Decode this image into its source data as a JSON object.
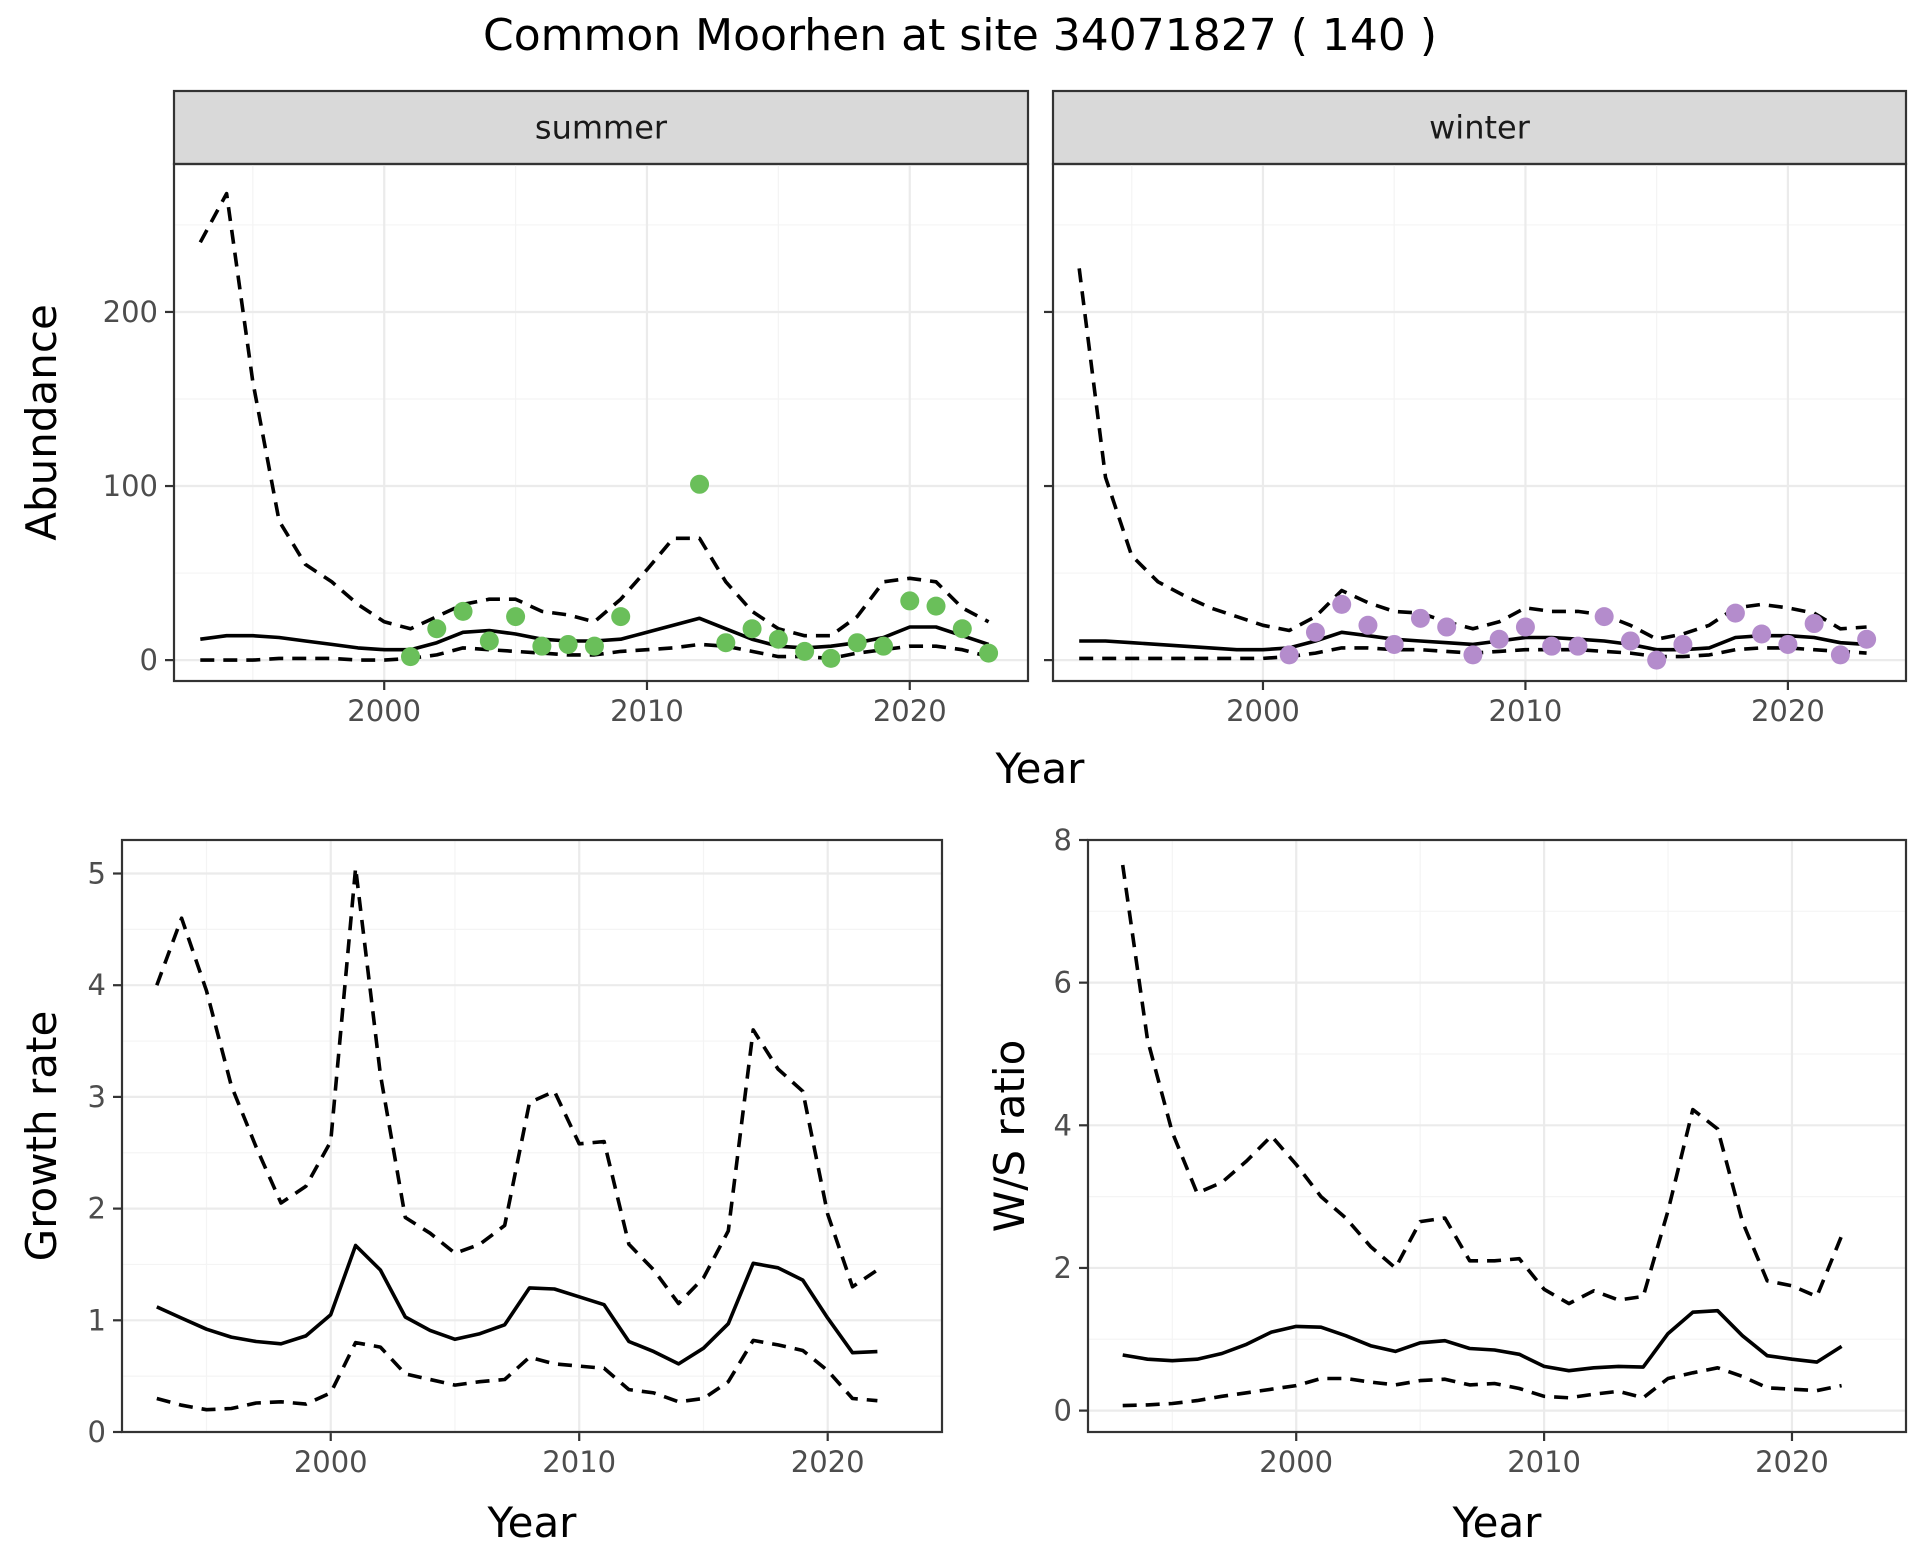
{
  "title": "Common Moorhen at site 34071827 ( 140 )",
  "colors": {
    "summer": "#6abf5a",
    "winter": "#b48ccc"
  },
  "chart_data": [
    {
      "id": "summer",
      "type": "line",
      "facet_label": "summer",
      "xlabel": "",
      "ylabel": "Abundance",
      "xlim": [
        1992,
        2024.5
      ],
      "ylim": [
        -12,
        285
      ],
      "xticks": [
        2000,
        2010,
        2020
      ],
      "yticks": [
        0,
        100,
        200
      ],
      "x": [
        1993,
        1994,
        1995,
        1996,
        1997,
        1998,
        1999,
        2000,
        2001,
        2002,
        2003,
        2004,
        2005,
        2006,
        2007,
        2008,
        2009,
        2010,
        2011,
        2012,
        2013,
        2014,
        2015,
        2016,
        2017,
        2018,
        2019,
        2020,
        2021,
        2022,
        2023
      ],
      "series": [
        {
          "role": "mean",
          "values": [
            12,
            14,
            14,
            13,
            11,
            9,
            7,
            6,
            6,
            10,
            16,
            17,
            15,
            12,
            11,
            11,
            12,
            16,
            20,
            24,
            18,
            12,
            8,
            7,
            8,
            10,
            13,
            19,
            19,
            14,
            9
          ]
        },
        {
          "role": "upper",
          "values": [
            240,
            268,
            160,
            80,
            55,
            45,
            32,
            22,
            18,
            25,
            32,
            35,
            35,
            28,
            26,
            22,
            35,
            52,
            70,
            70,
            45,
            28,
            18,
            14,
            14,
            25,
            45,
            47,
            45,
            30,
            22
          ]
        },
        {
          "role": "lower",
          "values": [
            0,
            0,
            0,
            1,
            1,
            1,
            0,
            0,
            1,
            3,
            7,
            6,
            5,
            4,
            3,
            3,
            5,
            6,
            7,
            9,
            8,
            5,
            2,
            2,
            1,
            4,
            6,
            8,
            8,
            6,
            2
          ]
        }
      ],
      "points": {
        "x": [
          2001,
          2002,
          2003,
          2004,
          2005,
          2006,
          2007,
          2008,
          2009,
          2012,
          2013,
          2014,
          2015,
          2016,
          2017,
          2018,
          2019,
          2020,
          2021,
          2022,
          2023
        ],
        "y": [
          2,
          18,
          28,
          11,
          25,
          8,
          9,
          8,
          25,
          101,
          10,
          18,
          12,
          5,
          1,
          10,
          8,
          34,
          31,
          18,
          4
        ]
      }
    },
    {
      "id": "winter",
      "type": "line",
      "facet_label": "winter",
      "xlabel": "",
      "ylabel": "",
      "xlim": [
        1992,
        2024.5
      ],
      "ylim": [
        -12,
        285
      ],
      "xticks": [
        2000,
        2010,
        2020
      ],
      "yticks": [
        0,
        100,
        200
      ],
      "x": [
        1993,
        1994,
        1995,
        1996,
        1997,
        1998,
        1999,
        2000,
        2001,
        2002,
        2003,
        2004,
        2005,
        2006,
        2007,
        2008,
        2009,
        2010,
        2011,
        2012,
        2013,
        2014,
        2015,
        2016,
        2017,
        2018,
        2019,
        2020,
        2021,
        2022,
        2023
      ],
      "series": [
        {
          "role": "mean",
          "values": [
            11,
            11,
            10,
            9,
            8,
            7,
            6,
            6,
            7,
            11,
            16,
            14,
            12,
            11,
            10,
            9,
            11,
            13,
            13,
            12,
            11,
            9,
            6,
            6,
            7,
            13,
            14,
            14,
            13,
            10,
            9
          ]
        },
        {
          "role": "upper",
          "values": [
            225,
            105,
            60,
            45,
            37,
            30,
            25,
            20,
            17,
            25,
            40,
            33,
            28,
            27,
            22,
            18,
            22,
            30,
            28,
            28,
            26,
            20,
            12,
            15,
            20,
            30,
            32,
            30,
            27,
            18,
            19
          ]
        },
        {
          "role": "lower",
          "values": [
            1,
            1,
            1,
            1,
            1,
            1,
            1,
            1,
            2,
            4,
            7,
            7,
            6,
            6,
            5,
            4,
            5,
            6,
            6,
            6,
            5,
            4,
            2,
            2,
            3,
            6,
            7,
            7,
            6,
            5,
            4
          ]
        }
      ],
      "points": {
        "x": [
          2001,
          2002,
          2003,
          2004,
          2005,
          2006,
          2007,
          2008,
          2009,
          2010,
          2011,
          2012,
          2013,
          2014,
          2015,
          2016,
          2018,
          2019,
          2020,
          2021,
          2022,
          2023
        ],
        "y": [
          3,
          16,
          32,
          20,
          9,
          24,
          19,
          3,
          12,
          19,
          8,
          8,
          25,
          11,
          0,
          9,
          27,
          15,
          9,
          21,
          3,
          12
        ]
      }
    },
    {
      "id": "growth",
      "type": "line",
      "xlabel": "Year",
      "ylabel": "Growth rate",
      "xlim": [
        1991.6,
        2024.6
      ],
      "ylim": [
        0,
        5.3
      ],
      "xticks": [
        2000,
        2010,
        2020
      ],
      "yticks": [
        0,
        1,
        2,
        3,
        4,
        5
      ],
      "x": [
        1993,
        1994,
        1995,
        1996,
        1997,
        1998,
        1999,
        2000,
        2001,
        2002,
        2003,
        2004,
        2005,
        2006,
        2007,
        2008,
        2009,
        2010,
        2011,
        2012,
        2013,
        2014,
        2015,
        2016,
        2017,
        2018,
        2019,
        2020,
        2021,
        2022
      ],
      "series": [
        {
          "role": "mean",
          "values": [
            1.12,
            1.02,
            0.92,
            0.85,
            0.81,
            0.79,
            0.86,
            1.05,
            1.67,
            1.45,
            1.03,
            0.91,
            0.83,
            0.88,
            0.96,
            1.29,
            1.28,
            1.21,
            1.14,
            0.81,
            0.72,
            0.61,
            0.75,
            0.97,
            1.51,
            1.47,
            1.36,
            1.02,
            0.71,
            0.72
          ]
        },
        {
          "role": "upper",
          "values": [
            4.0,
            4.6,
            3.95,
            3.1,
            2.55,
            2.05,
            2.2,
            2.6,
            5.05,
            3.2,
            1.92,
            1.78,
            1.6,
            1.68,
            1.85,
            2.95,
            3.05,
            2.58,
            2.6,
            1.68,
            1.45,
            1.15,
            1.38,
            1.8,
            3.6,
            3.25,
            3.05,
            1.95,
            1.3,
            1.45
          ]
        },
        {
          "role": "lower",
          "values": [
            0.3,
            0.24,
            0.2,
            0.21,
            0.26,
            0.27,
            0.25,
            0.35,
            0.8,
            0.76,
            0.52,
            0.47,
            0.42,
            0.45,
            0.47,
            0.67,
            0.61,
            0.59,
            0.57,
            0.38,
            0.35,
            0.27,
            0.3,
            0.45,
            0.82,
            0.78,
            0.73,
            0.55,
            0.3,
            0.28
          ]
        }
      ]
    },
    {
      "id": "ws",
      "type": "line",
      "xlabel": "Year",
      "ylabel": "W/S ratio",
      "xlim": [
        1991.6,
        2024.6
      ],
      "ylim": [
        -0.3,
        8.0
      ],
      "xticks": [
        2000,
        2010,
        2020
      ],
      "yticks": [
        0,
        2,
        4,
        6,
        8
      ],
      "x": [
        1993,
        1994,
        1995,
        1996,
        1997,
        1998,
        1999,
        2000,
        2001,
        2002,
        2003,
        2004,
        2005,
        2006,
        2007,
        2008,
        2009,
        2010,
        2011,
        2012,
        2013,
        2014,
        2015,
        2016,
        2017,
        2018,
        2019,
        2020,
        2021,
        2022
      ],
      "series": [
        {
          "role": "mean",
          "values": [
            0.78,
            0.72,
            0.7,
            0.72,
            0.8,
            0.93,
            1.1,
            1.18,
            1.17,
            1.05,
            0.91,
            0.83,
            0.95,
            0.98,
            0.87,
            0.85,
            0.79,
            0.62,
            0.56,
            0.6,
            0.62,
            0.61,
            1.08,
            1.38,
            1.4,
            1.05,
            0.77,
            0.72,
            0.68,
            0.9
          ]
        },
        {
          "role": "upper",
          "values": [
            7.65,
            5.2,
            3.9,
            3.05,
            3.2,
            3.5,
            3.85,
            3.45,
            3.0,
            2.7,
            2.3,
            2.0,
            2.65,
            2.7,
            2.1,
            2.1,
            2.13,
            1.7,
            1.5,
            1.68,
            1.55,
            1.6,
            2.8,
            4.22,
            3.95,
            2.65,
            1.82,
            1.75,
            1.6,
            2.45
          ]
        },
        {
          "role": "lower",
          "values": [
            0.07,
            0.08,
            0.1,
            0.14,
            0.2,
            0.25,
            0.3,
            0.35,
            0.45,
            0.45,
            0.4,
            0.36,
            0.42,
            0.44,
            0.36,
            0.38,
            0.31,
            0.2,
            0.18,
            0.23,
            0.27,
            0.18,
            0.45,
            0.53,
            0.6,
            0.48,
            0.32,
            0.3,
            0.28,
            0.35
          ]
        }
      ]
    }
  ],
  "shared": {
    "top_xlabel": "Year"
  }
}
